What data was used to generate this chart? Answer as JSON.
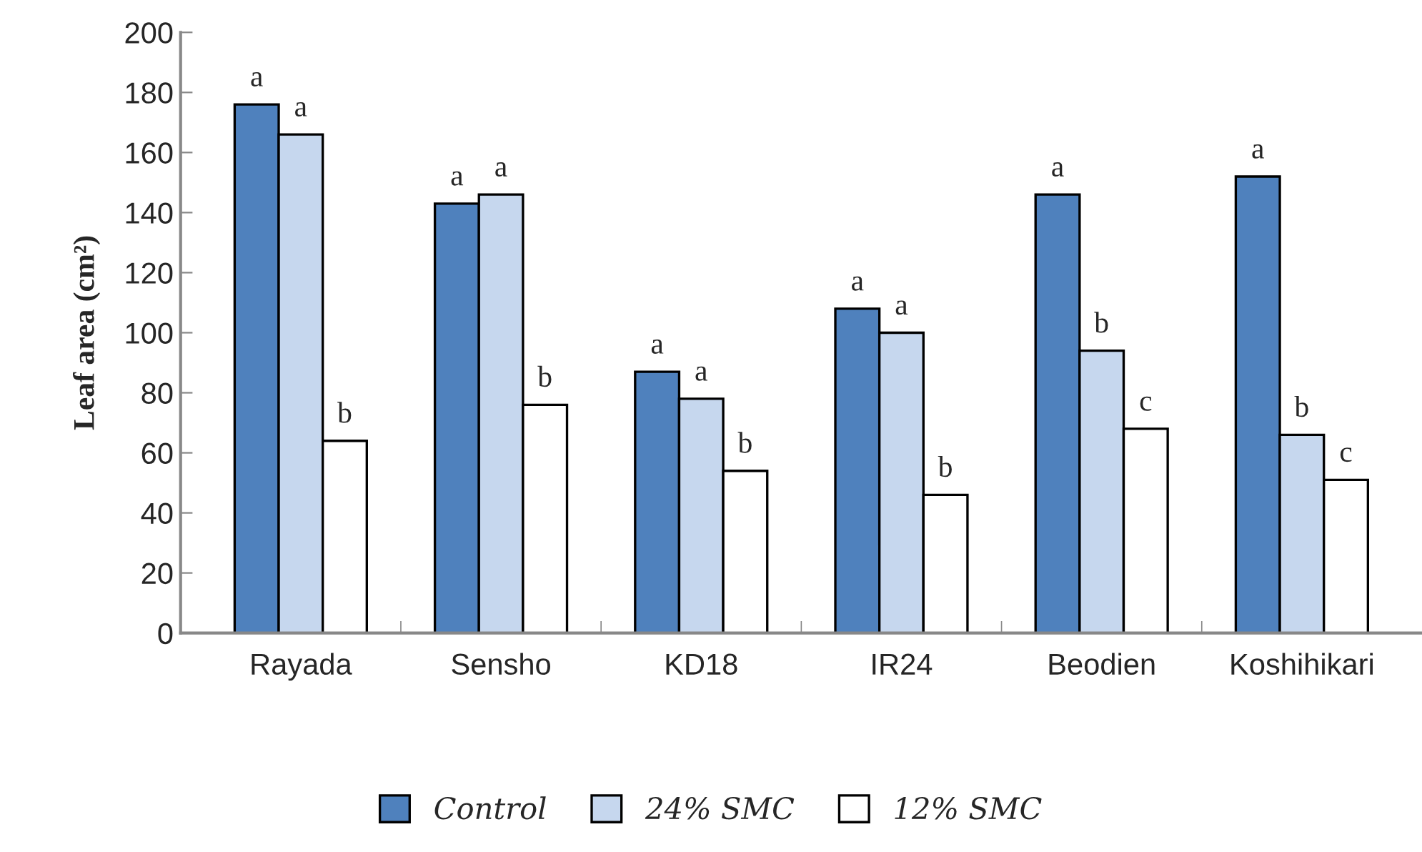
{
  "chart_data": {
    "type": "bar",
    "ylabel": "Leaf area (cm²)",
    "categories": [
      "Rayada",
      "Sensho",
      "KD18",
      "IR24",
      "Beodien",
      "Koshihikari"
    ],
    "series": [
      {
        "name": "Control",
        "color": "#4f81bd",
        "values": [
          176,
          143,
          87,
          108,
          146,
          152
        ],
        "value_labels": [
          "a",
          "a",
          "a",
          "a",
          "a",
          "a"
        ]
      },
      {
        "name": "24% SMC",
        "color": "#c6d7ee",
        "values": [
          166,
          146,
          78,
          100,
          94,
          66
        ],
        "value_labels": [
          "a",
          "a",
          "a",
          "a",
          "b",
          "b"
        ]
      },
      {
        "name": "12% SMC",
        "color": "#ffffff",
        "values": [
          64,
          76,
          54,
          46,
          68,
          51
        ],
        "value_labels": [
          "b",
          "b",
          "b",
          "b",
          "c",
          "c"
        ]
      }
    ],
    "ylim": [
      0,
      200
    ],
    "yticks": [
      0,
      20,
      40,
      60,
      80,
      100,
      120,
      140,
      160,
      180,
      200
    ],
    "grid": false,
    "legend": "bottom"
  }
}
